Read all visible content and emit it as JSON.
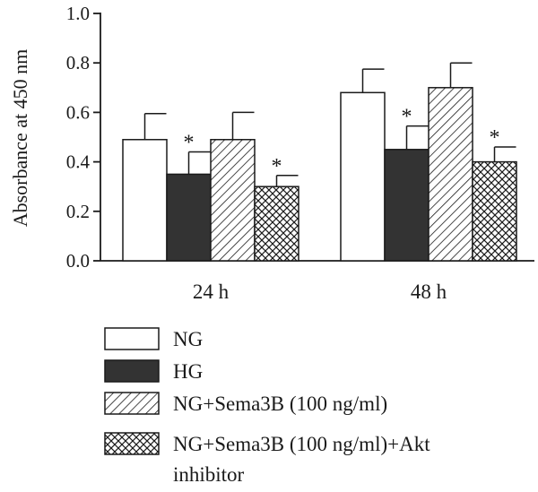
{
  "chart_data": {
    "type": "bar",
    "ylabel": "Absorbance at 450 nm",
    "xlabel": "",
    "ylim": [
      0,
      1.0
    ],
    "yticks": [
      "0.0",
      "0.2",
      "0.4",
      "0.6",
      "0.8",
      "1.0"
    ],
    "categories": [
      "24 h",
      "48 h"
    ],
    "series": [
      {
        "name": "NG",
        "values": [
          0.49,
          0.68
        ],
        "errors": [
          0.105,
          0.095
        ],
        "significant": [
          false,
          false
        ],
        "fill": "white"
      },
      {
        "name": "HG",
        "values": [
          0.35,
          0.45
        ],
        "errors": [
          0.09,
          0.095
        ],
        "significant": [
          true,
          true
        ],
        "fill": "solid"
      },
      {
        "name": "NG+Sema3B (100 ng/ml)",
        "values": [
          0.49,
          0.7
        ],
        "errors": [
          0.11,
          0.1
        ],
        "significant": [
          false,
          false
        ],
        "fill": "diagonal"
      },
      {
        "name": "NG+Sema3B (100 ng/ml)+Akt inhibitor",
        "values": [
          0.3,
          0.4
        ],
        "errors": [
          0.045,
          0.06
        ],
        "significant": [
          true,
          true
        ],
        "fill": "crosshatch"
      }
    ],
    "significance_marker": "*",
    "legend_position": "bottom",
    "grid": false,
    "colors": {
      "solid": "#333333",
      "outline": "#1a1a1a",
      "background": "#ffffff"
    }
  }
}
